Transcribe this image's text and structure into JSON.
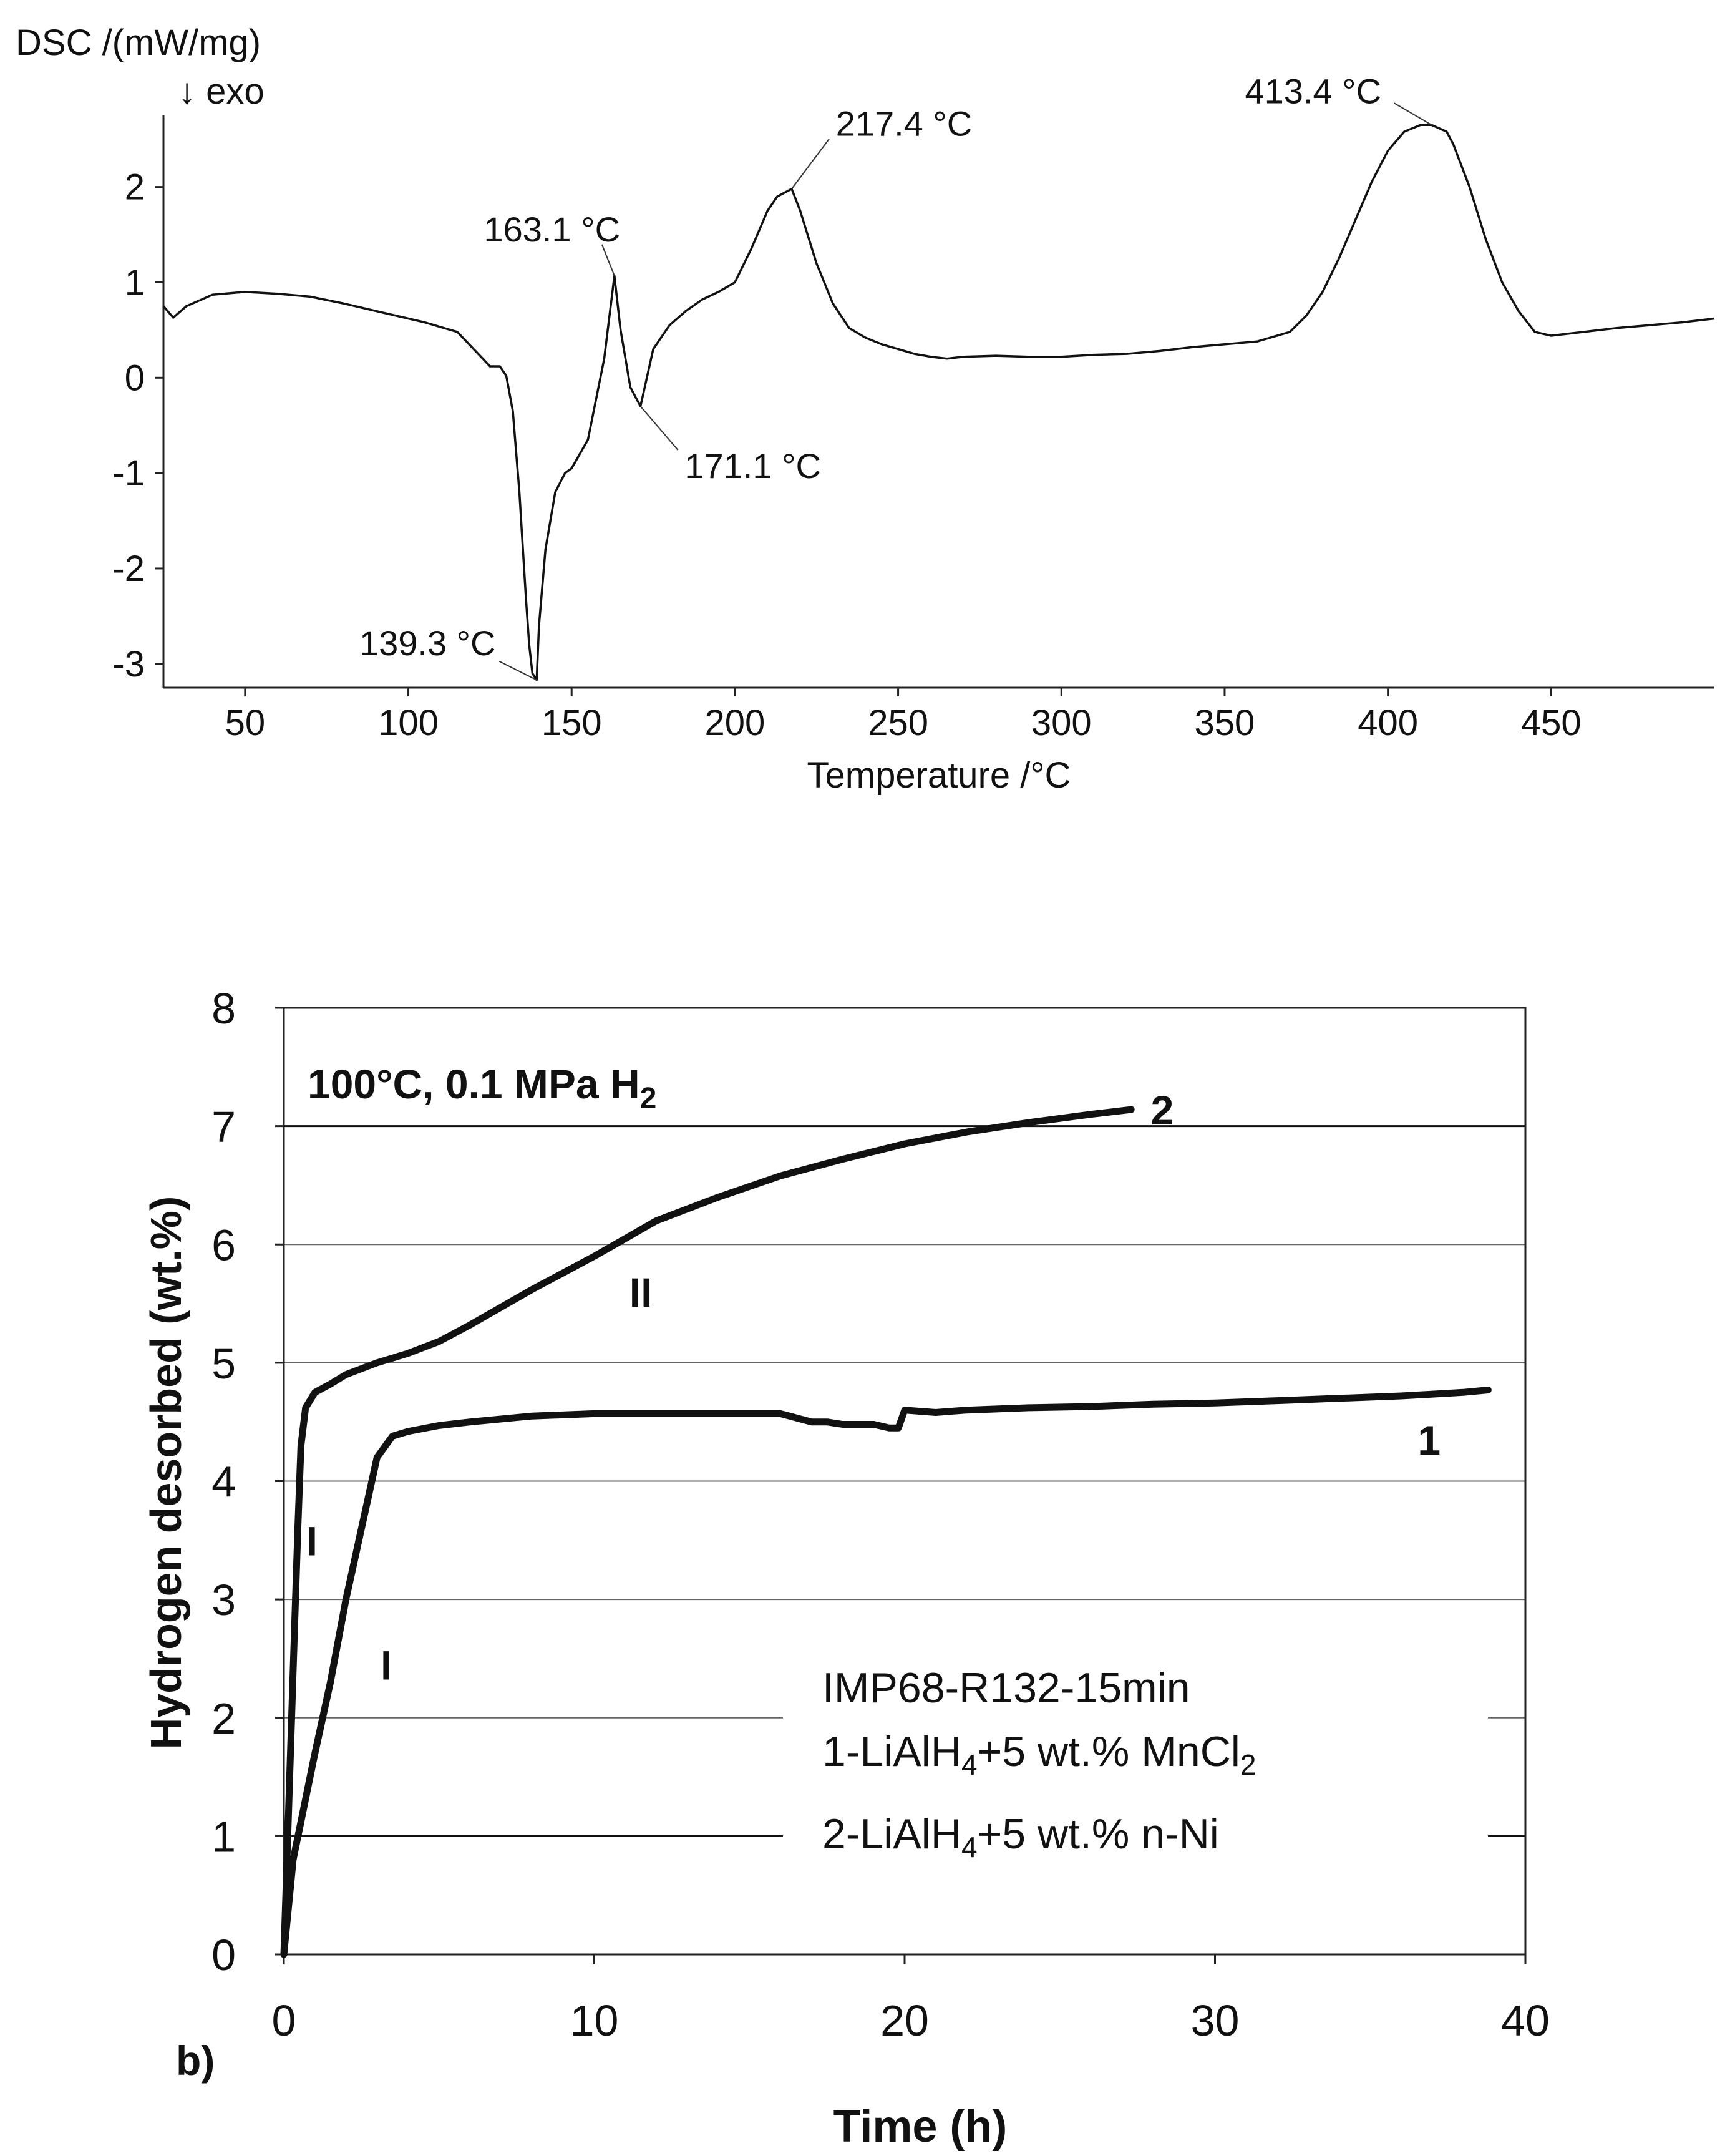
{
  "chart_data": [
    {
      "type": "line",
      "panel": "a",
      "ylabel": "DSC /(mW/mg)",
      "ylabel_note": "↓  exo",
      "xlabel": "Temperature /°C",
      "xlim": [
        25,
        500
      ],
      "ylim": [
        -3.25,
        2.75
      ],
      "xticks": [
        50,
        100,
        150,
        200,
        250,
        300,
        350,
        400,
        450
      ],
      "yticks": [
        2,
        1,
        0,
        -1,
        -2,
        -3
      ],
      "series": [
        {
          "name": "DSC",
          "x": [
            25,
            28,
            32,
            40,
            50,
            60,
            70,
            80,
            90,
            100,
            105,
            110,
            115,
            120,
            125,
            128,
            130,
            132,
            134,
            136,
            137,
            138,
            139.3,
            140,
            142,
            145,
            148,
            150,
            155,
            160,
            163.1,
            165,
            168,
            171.1,
            175,
            180,
            185,
            190,
            195,
            200,
            205,
            210,
            213,
            217.4,
            220,
            225,
            230,
            235,
            240,
            245,
            250,
            255,
            260,
            265,
            270,
            280,
            290,
            300,
            310,
            320,
            330,
            340,
            350,
            360,
            370,
            375,
            380,
            385,
            390,
            395,
            400,
            405,
            410,
            413.4,
            418,
            420,
            425,
            430,
            435,
            440,
            445,
            450,
            460,
            470,
            480,
            490,
            500
          ],
          "y": [
            0.75,
            0.63,
            0.75,
            0.87,
            0.9,
            0.88,
            0.85,
            0.78,
            0.7,
            0.62,
            0.58,
            0.53,
            0.48,
            0.3,
            0.12,
            0.12,
            0.02,
            -0.35,
            -1.2,
            -2.3,
            -2.8,
            -3.1,
            -3.17,
            -2.6,
            -1.8,
            -1.2,
            -1.0,
            -0.95,
            -0.65,
            0.2,
            1.07,
            0.5,
            -0.1,
            -0.3,
            0.3,
            0.55,
            0.7,
            0.82,
            0.9,
            1.0,
            1.35,
            1.75,
            1.9,
            1.98,
            1.75,
            1.2,
            0.78,
            0.52,
            0.42,
            0.35,
            0.3,
            0.25,
            0.22,
            0.2,
            0.22,
            0.23,
            0.22,
            0.22,
            0.24,
            0.25,
            0.28,
            0.32,
            0.35,
            0.38,
            0.48,
            0.65,
            0.9,
            1.25,
            1.65,
            2.05,
            2.38,
            2.58,
            2.65,
            2.65,
            2.58,
            2.45,
            2.0,
            1.45,
            1.0,
            0.7,
            0.48,
            0.44,
            0.48,
            0.52,
            0.55,
            0.58,
            0.62
          ]
        }
      ],
      "annotations": [
        {
          "text": "413.4 °C",
          "x": 413.4,
          "y": 2.65
        },
        {
          "text": "217.4 °C",
          "x": 217.4,
          "y": 1.98
        },
        {
          "text": "163.1 °C",
          "x": 163.1,
          "y": 1.07
        },
        {
          "text": "171.1 °C",
          "x": 171.1,
          "y": -0.3
        },
        {
          "text": "139.3 °C",
          "x": 139.3,
          "y": -3.17
        }
      ]
    },
    {
      "type": "line",
      "panel": "b",
      "panel_label": "b)",
      "title": "100°C, 0.1 MPa H",
      "title_subscript": "2",
      "xlabel": "Time (h)",
      "ylabel": "Hydrogen desorbed (wt.%)",
      "xlim": [
        0,
        40
      ],
      "ylim": [
        0,
        8
      ],
      "xticks": [
        0,
        10,
        20,
        30,
        40
      ],
      "yticks": [
        0,
        1,
        2,
        3,
        4,
        5,
        6,
        7,
        8
      ],
      "grid": true,
      "series": [
        {
          "name": "1",
          "x": [
            0,
            0.3,
            1,
            1.5,
            2,
            2.5,
            3,
            3.5,
            4,
            5,
            6,
            8,
            10,
            12,
            14,
            15,
            16,
            17,
            17.5,
            18,
            19,
            19.5,
            19.8,
            20,
            21,
            22,
            24,
            26,
            28,
            30,
            32,
            34,
            36,
            38,
            38.8
          ],
          "y": [
            0,
            0.8,
            1.7,
            2.3,
            3.0,
            3.6,
            4.2,
            4.38,
            4.42,
            4.47,
            4.5,
            4.55,
            4.57,
            4.57,
            4.57,
            4.57,
            4.57,
            4.5,
            4.5,
            4.48,
            4.48,
            4.45,
            4.45,
            4.6,
            4.58,
            4.6,
            4.62,
            4.63,
            4.65,
            4.66,
            4.68,
            4.7,
            4.72,
            4.75,
            4.77
          ]
        },
        {
          "name": "2",
          "x": [
            0,
            0.15,
            0.3,
            0.45,
            0.55,
            0.7,
            1,
            1.5,
            2,
            3,
            4,
            5,
            6,
            8,
            10,
            11,
            12,
            14,
            16,
            18,
            20,
            22,
            24,
            26,
            27.3
          ],
          "y": [
            0,
            1.2,
            2.4,
            3.6,
            4.3,
            4.62,
            4.75,
            4.82,
            4.9,
            5.0,
            5.08,
            5.18,
            5.32,
            5.62,
            5.9,
            6.05,
            6.2,
            6.4,
            6.58,
            6.72,
            6.85,
            6.95,
            7.03,
            7.1,
            7.14
          ]
        }
      ],
      "annotations": [
        {
          "text": "2",
          "x": 28.3,
          "y": 7.14
        },
        {
          "text": "1",
          "x": 36.9,
          "y": 4.35
        },
        {
          "text": "II",
          "x": 11.5,
          "y": 5.6
        },
        {
          "text": "I",
          "x": 0.9,
          "y": 3.5
        },
        {
          "text": "I",
          "x": 3.3,
          "y": 2.45
        }
      ],
      "legend": {
        "placement": "bottom-right",
        "lines": [
          {
            "main": "IMP68-R132-15min"
          },
          {
            "main": "1-LiAlH",
            "sub": "4",
            "rest": "+5 wt.% MnCl",
            "sub2": "2"
          },
          {
            "main": "2-LiAlH",
            "sub": "4",
            "rest": "+5 wt.% n-Ni"
          }
        ]
      }
    }
  ]
}
